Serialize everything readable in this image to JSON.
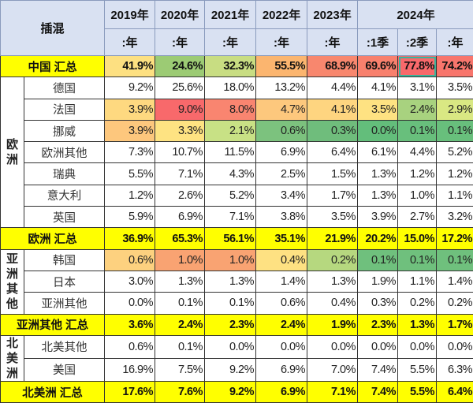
{
  "table": {
    "corner_label": "插混",
    "year_headers": [
      "2019年",
      "2020年",
      "2021年",
      "2022年",
      "2023年",
      "2024年"
    ],
    "sub_headers": [
      ":年",
      ":年",
      ":年",
      ":年",
      ":年",
      ":1季",
      ":2季",
      ":年"
    ],
    "selected_cell": {
      "row": "中国 汇总",
      "column": ":2季"
    },
    "rows": [
      {
        "type": "total",
        "name": "中国 汇总",
        "values": [
          "41.9%",
          "24.6%",
          "32.3%",
          "55.5%",
          "68.9%",
          "69.6%",
          "77.8%",
          "74.2%"
        ],
        "colors": [
          "#fde081",
          "#9ccb74",
          "#c8dd82",
          "#fbb56f",
          "#f8876e",
          "#f8806d",
          "#f8696b",
          "#f8756c"
        ]
      },
      {
        "type": "item",
        "region": "欧洲",
        "region_span": 7,
        "name": "德国",
        "values": [
          "9.2%",
          "25.6%",
          "18.0%",
          "13.2%",
          "4.4%",
          "4.1%",
          "3.1%",
          "3.5%"
        ]
      },
      {
        "type": "item",
        "name": "法国",
        "values": [
          "3.9%",
          "9.0%",
          "8.0%",
          "4.7%",
          "4.1%",
          "3.5%",
          "2.4%",
          "2.9%"
        ],
        "colors": [
          "#fed980",
          "#f8696b",
          "#f98570",
          "#fdc87d",
          "#fed580",
          "#fee282",
          "#a8d27f",
          "#d9e883"
        ]
      },
      {
        "type": "item",
        "name": "挪威",
        "values": [
          "3.9%",
          "3.3%",
          "2.1%",
          "0.6%",
          "0.3%",
          "0.0%",
          "0.1%",
          "0.1%"
        ],
        "colors": [
          "#fdc77d",
          "#fee382",
          "#c8e185",
          "#7cc27e",
          "#6fbd7c",
          "#63be7b",
          "#68bf7c",
          "#68bf7c"
        ]
      },
      {
        "type": "item",
        "name": "欧洲其他",
        "values": [
          "7.3%",
          "10.7%",
          "11.5%",
          "6.9%",
          "6.4%",
          "6.1%",
          "4.4%",
          "5.2%"
        ]
      },
      {
        "type": "item",
        "name": "瑞典",
        "values": [
          "5.5%",
          "7.1%",
          "4.3%",
          "2.5%",
          "1.5%",
          "1.3%",
          "1.2%",
          "1.2%"
        ]
      },
      {
        "type": "item",
        "name": "意大利",
        "values": [
          "1.2%",
          "2.6%",
          "5.2%",
          "3.4%",
          "1.7%",
          "1.3%",
          "1.0%",
          "1.1%"
        ]
      },
      {
        "type": "item",
        "name": "英国",
        "values": [
          "5.9%",
          "6.9%",
          "7.1%",
          "3.8%",
          "3.5%",
          "3.9%",
          "2.7%",
          "3.2%"
        ]
      },
      {
        "type": "total",
        "name": "欧洲 汇总",
        "values": [
          "36.9%",
          "65.3%",
          "56.1%",
          "35.1%",
          "21.9%",
          "20.2%",
          "15.0%",
          "17.2%"
        ]
      },
      {
        "type": "item",
        "region": "亚洲其他",
        "region_span": 3,
        "name": "韩国",
        "values": [
          "0.6%",
          "1.0%",
          "1.0%",
          "0.4%",
          "0.2%",
          "0.1%",
          "0.1%",
          "0.1%"
        ],
        "colors": [
          "#fdd17f",
          "#f9a372",
          "#f9a372",
          "#fee182",
          "#b6d87f",
          "#6fc07d",
          "#6fc07d",
          "#6fc07d"
        ]
      },
      {
        "type": "item",
        "name": "日本",
        "values": [
          "3.0%",
          "1.3%",
          "1.3%",
          "1.4%",
          "1.3%",
          "1.9%",
          "1.1%",
          "1.4%"
        ]
      },
      {
        "type": "item",
        "name": "亚洲其他",
        "values": [
          "0.0%",
          "0.1%",
          "0.1%",
          "0.6%",
          "0.4%",
          "0.3%",
          "0.2%",
          "0.2%"
        ]
      },
      {
        "type": "total",
        "name": "亚洲其他 汇总",
        "values": [
          "3.6%",
          "2.4%",
          "2.3%",
          "2.4%",
          "1.9%",
          "2.3%",
          "1.3%",
          "1.7%"
        ]
      },
      {
        "type": "item",
        "region": "北美洲",
        "region_span": 2,
        "name": "北美其他",
        "values": [
          "0.6%",
          "0.1%",
          "0.0%",
          "0.0%",
          "0.0%",
          "0.0%",
          "0.0%",
          "0.0%"
        ]
      },
      {
        "type": "item",
        "name": "美国",
        "values": [
          "16.9%",
          "7.5%",
          "9.2%",
          "6.9%",
          "7.0%",
          "7.4%",
          "5.5%",
          "6.3%"
        ]
      },
      {
        "type": "total",
        "name": "北美洲 汇总",
        "values": [
          "17.6%",
          "7.6%",
          "9.2%",
          "6.9%",
          "7.1%",
          "7.4%",
          "5.5%",
          "6.4%"
        ]
      }
    ]
  }
}
